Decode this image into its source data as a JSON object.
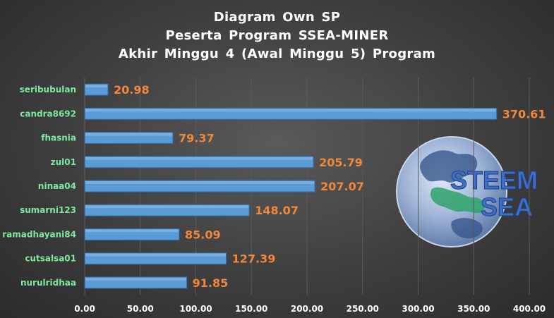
{
  "chart_data": {
    "type": "bar",
    "orientation": "horizontal",
    "title_lines": [
      "Diagram  Own  SP",
      "Peserta  Program  SSEA-MINER",
      "Akhir  Minggu  4  (Awal  Minggu  5)  Program"
    ],
    "categories": [
      "seribubulan",
      "candra8692",
      "fhasnia",
      "zul01",
      "ninaa04",
      "sumarni123",
      "ramadhayani84",
      "cutsalsa01",
      "nurulridhaa"
    ],
    "values": [
      20.98,
      370.61,
      79.37,
      205.79,
      207.07,
      148.07,
      85.09,
      127.39,
      91.85
    ],
    "value_labels": [
      "20.98",
      "370.61",
      "79.37",
      "205.79",
      "207.07",
      "148.07",
      "85.09",
      "127.39",
      "91.85"
    ],
    "xlim": [
      0,
      400
    ],
    "xticks": [
      "0.00",
      "50.00",
      "100.00",
      "150.00",
      "200.00",
      "250.00",
      "300.00",
      "350.00",
      "400.00"
    ],
    "xlabel": "",
    "ylabel": "",
    "gridlines": true,
    "legend": "none",
    "colors": {
      "bar": "#5b9bd5",
      "bar_edge": "#2e6aa8",
      "value_label": "#f0873a",
      "category_label": "#7ee8a0",
      "tick_label": "#ffffff",
      "grid": "#5a5a5a",
      "title": "#ffffff"
    }
  },
  "logo": {
    "name": "steem-sea-logo",
    "line1": "STEEM",
    "line2": "SEA"
  }
}
